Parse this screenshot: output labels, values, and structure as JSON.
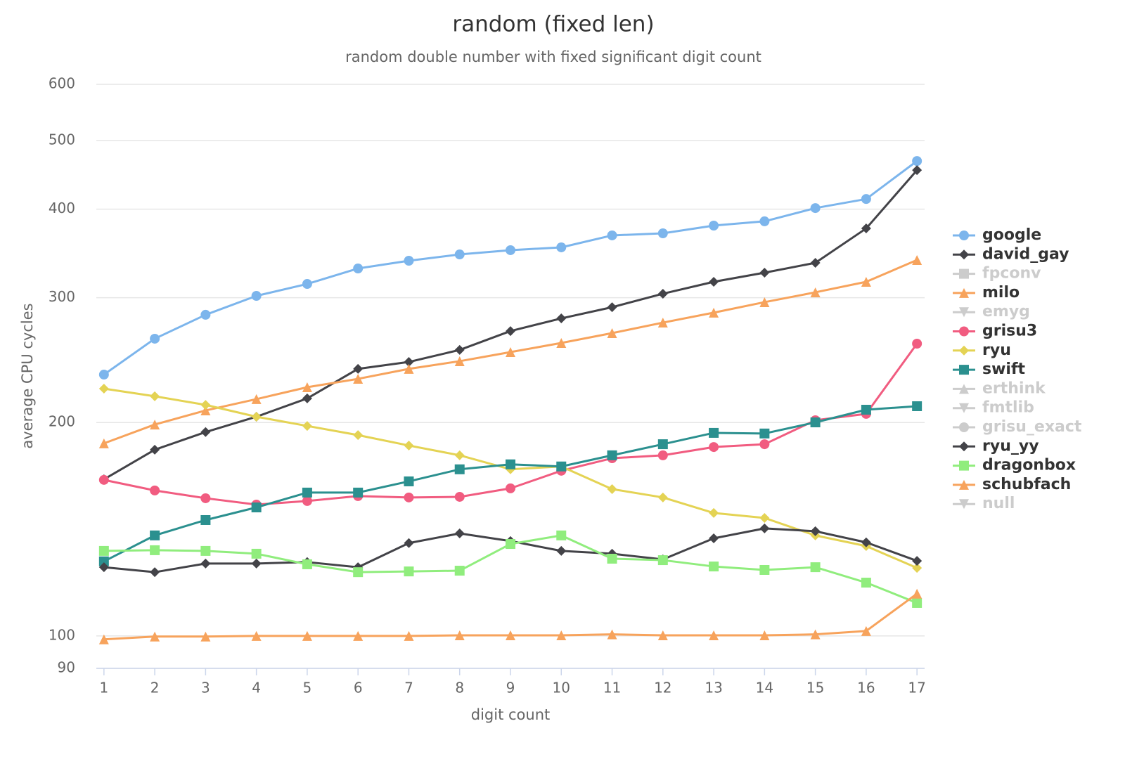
{
  "chart_data": {
    "type": "line",
    "title": "random (fixed len)",
    "subtitle": "random double number with fixed significant digit count",
    "x_label": "digit count",
    "y_label": "average CPU cycles",
    "y_scale": "log",
    "grid": true,
    "legend": "right",
    "xlim": [
      0.85,
      17.15
    ],
    "xticks": [
      1,
      2,
      3,
      4,
      5,
      6,
      7,
      8,
      9,
      10,
      11,
      12,
      13,
      14,
      15,
      16,
      17
    ],
    "ylim": [
      90,
      600
    ],
    "yticks": [
      90,
      100,
      200,
      300,
      400,
      500,
      600
    ],
    "x": [
      1,
      2,
      3,
      4,
      5,
      6,
      7,
      8,
      9,
      10,
      11,
      12,
      13,
      14,
      15,
      16,
      17
    ],
    "series": [
      {
        "name": "google",
        "color": "#7cb5ec",
        "marker": "circle",
        "visible": true,
        "values": [
          233.7,
          262.6,
          283.8,
          301.8,
          313.7,
          329.9,
          338.3,
          345.3,
          350.1,
          353.3,
          367.3,
          369.8,
          379.2,
          384.5,
          401.4,
          413.4,
          467.7
        ]
      },
      {
        "name": "david_gay",
        "color": "#434348",
        "marker": "diamond",
        "visible": true,
        "values": [
          166.3,
          183.1,
          193.9,
          203.8,
          216.3,
          238.1,
          243.5,
          253.2,
          269.2,
          280.5,
          290.9,
          303.9,
          315.9,
          325.4,
          336,
          375.7,
          454
        ]
      },
      {
        "name": "fpconv",
        "color": "#90ed7d",
        "marker": "square",
        "visible": false
      },
      {
        "name": "milo",
        "color": "#f7a35c",
        "marker": "triangle",
        "visible": true,
        "values": [
          186.9,
          198.7,
          208,
          215.8,
          224.3,
          230.5,
          238.1,
          244.1,
          251.4,
          259,
          267.4,
          276.7,
          285.8,
          295.7,
          305.3,
          315.9,
          339.1
        ]
      },
      {
        "name": "emyg",
        "color": "#8085e9",
        "marker": "triangle-down",
        "visible": false
      },
      {
        "name": "grisu3",
        "color": "#f15c80",
        "marker": "circle",
        "visible": true,
        "values": [
          166,
          160.4,
          156.4,
          153.2,
          155,
          157.5,
          156.8,
          157.1,
          161.5,
          171,
          178.1,
          179.8,
          184.7,
          186.4,
          201.5,
          205.7,
          258.4
        ]
      },
      {
        "name": "ryu",
        "color": "#e4d354",
        "marker": "diamond",
        "visible": true,
        "values": [
          223.3,
          217.8,
          211.8,
          203.8,
          197.8,
          192,
          185.6,
          179.8,
          171.8,
          173.4,
          161.1,
          156.8,
          149.1,
          146.7,
          138.6,
          133.9,
          124.7
        ]
      },
      {
        "name": "swift",
        "color": "#2b908f",
        "marker": "square",
        "visible": true,
        "values": [
          127.4,
          138.6,
          145.7,
          151.8,
          159.3,
          159.3,
          165.2,
          171.8,
          174.6,
          173.4,
          179.8,
          186.4,
          193.4,
          193,
          200.1,
          208.5,
          210.9
        ]
      },
      {
        "name": "erthink",
        "color": "#f45b5b",
        "marker": "triangle",
        "visible": false
      },
      {
        "name": "fmtlib",
        "color": "#91e8e1",
        "marker": "triangle-down",
        "visible": false
      },
      {
        "name": "grisu_exact",
        "color": "#7cb5ec",
        "marker": "circle",
        "visible": false
      },
      {
        "name": "ryu_yy",
        "color": "#434348",
        "marker": "diamond",
        "visible": true,
        "values": [
          125,
          123,
          126.5,
          126.5,
          127.1,
          125,
          135.2,
          139.5,
          136.1,
          131.8,
          130.6,
          128.2,
          137.3,
          141.8,
          140.5,
          135.5,
          127.6
        ]
      },
      {
        "name": "dragonbox",
        "color": "#90ed7d",
        "marker": "square",
        "visible": true,
        "values": [
          131.8,
          132.1,
          131.8,
          130.6,
          126.2,
          123,
          123.3,
          123.6,
          134.8,
          138.6,
          128.5,
          127.9,
          125.3,
          123.9,
          125,
          118.9,
          111.3
        ]
      },
      {
        "name": "schubfach",
        "color": "#f7a35c",
        "marker": "triangle",
        "visible": true,
        "values": [
          98.9,
          99.8,
          99.8,
          100,
          100,
          100,
          100,
          100.2,
          100.2,
          100.2,
          100.5,
          100.2,
          100.2,
          100.2,
          100.5,
          101.6,
          114.7
        ]
      },
      {
        "name": "null",
        "color": "#8085e9",
        "marker": "triangle-down",
        "visible": false
      }
    ]
  }
}
